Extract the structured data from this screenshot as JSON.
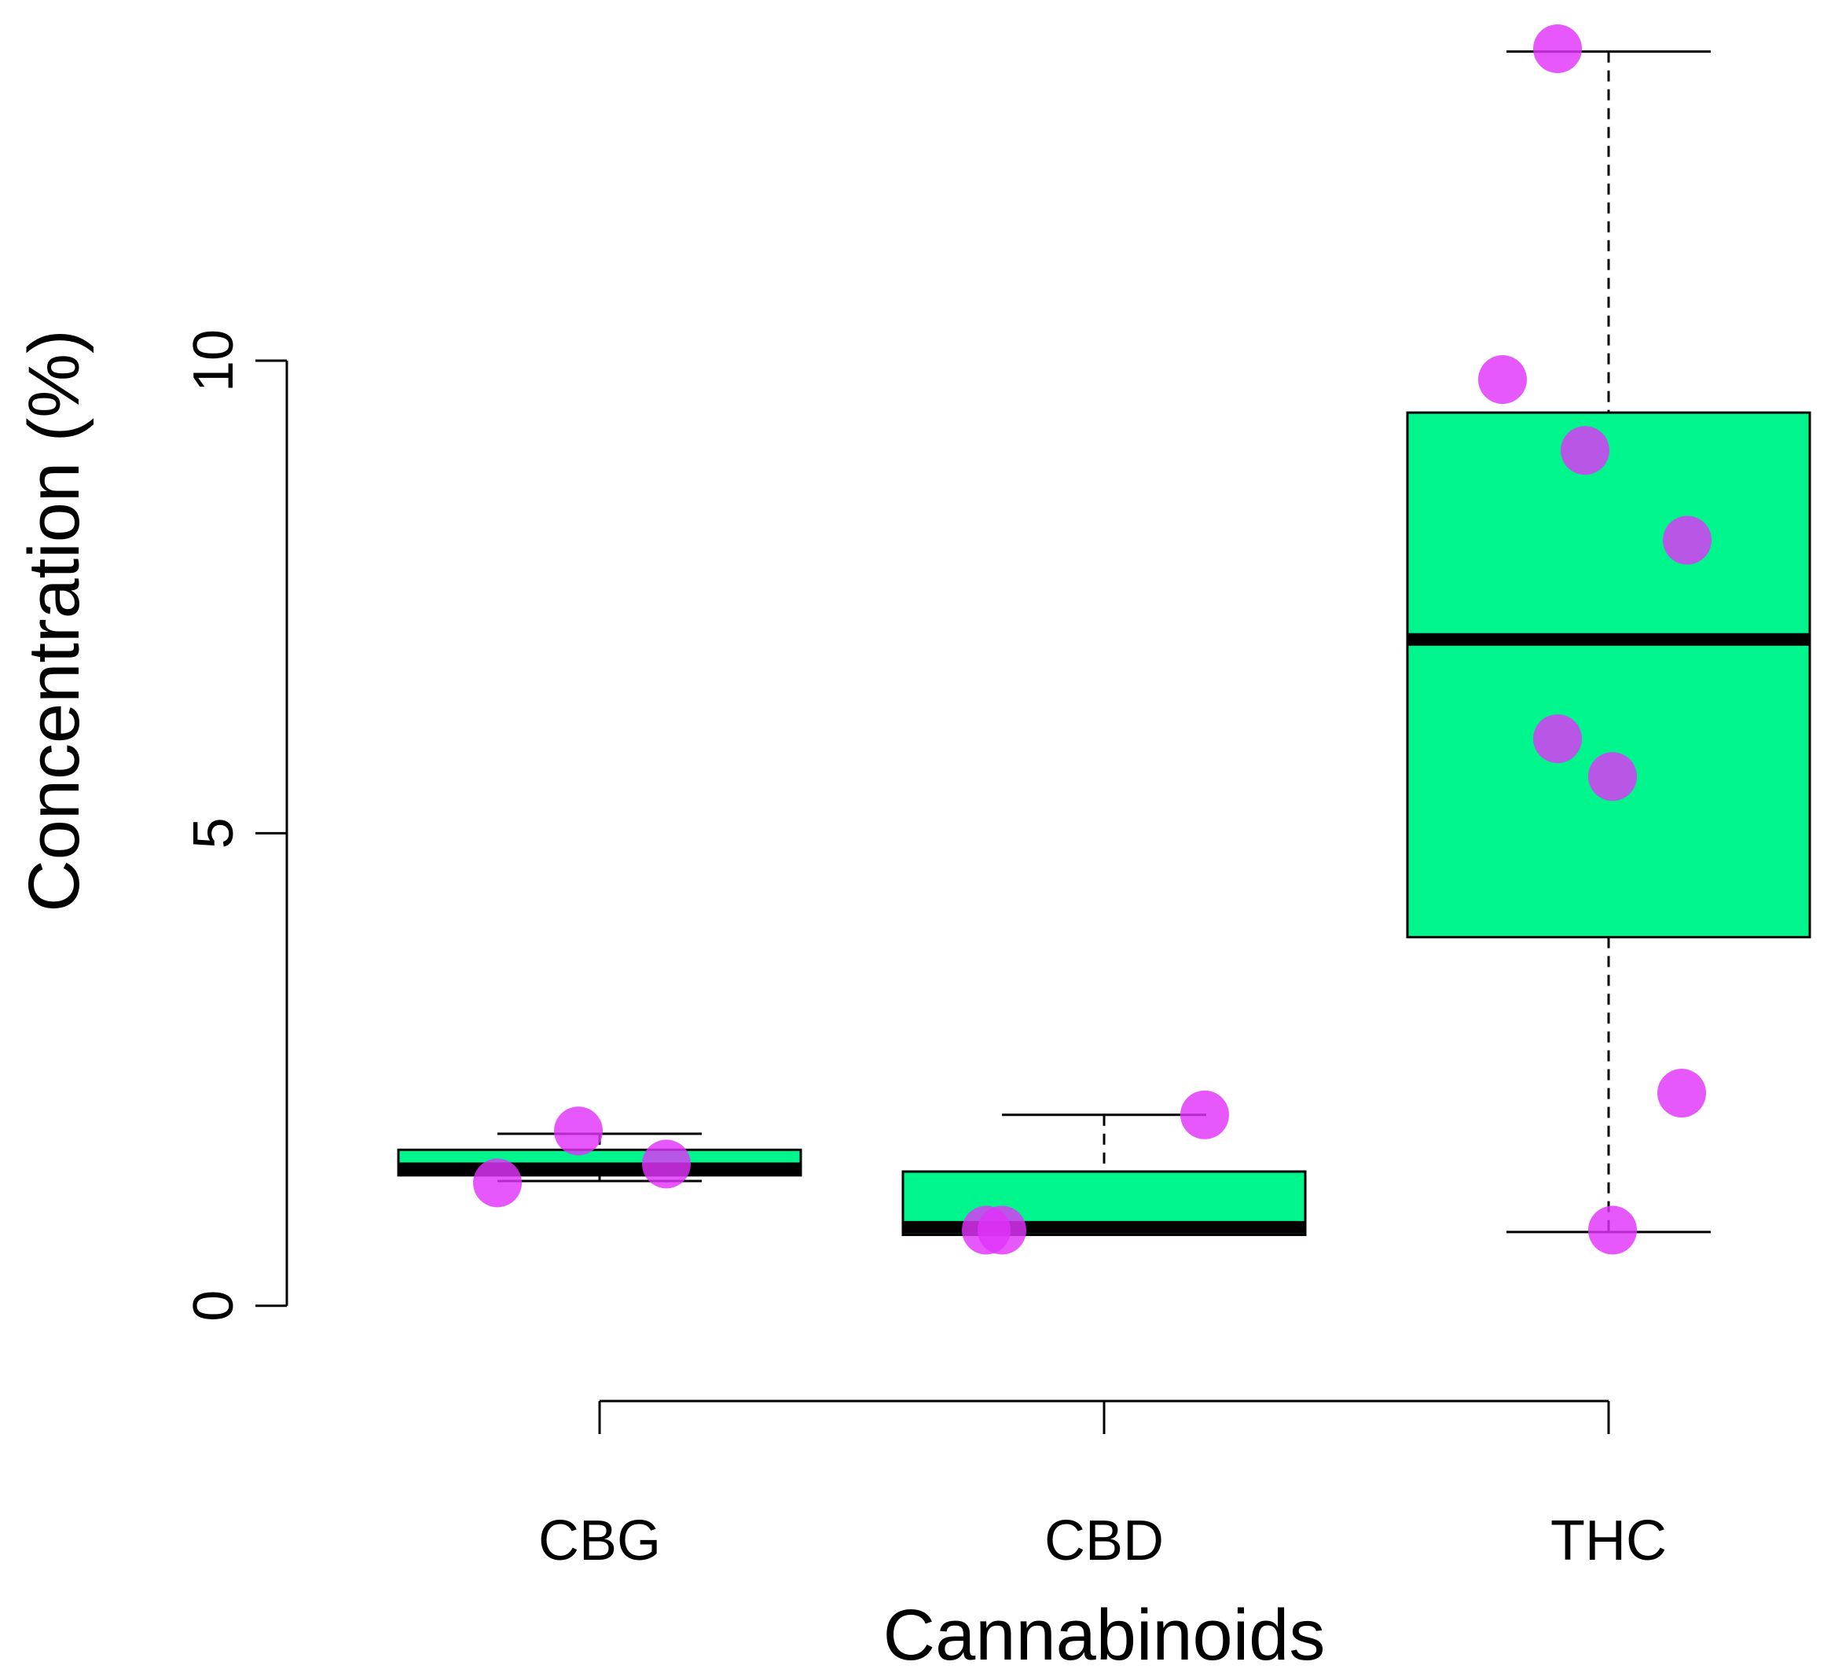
{
  "chart_data": {
    "type": "boxplot",
    "xlabel": "Cannabinoids",
    "ylabel": "Concentration (%)",
    "ylim": [
      -0.9,
      13.4
    ],
    "yticks": [
      0,
      5,
      10
    ],
    "categories": [
      "CBG",
      "CBD",
      "THC"
    ],
    "box_stats": [
      {
        "category": "CBG",
        "lower_whisker": 1.32,
        "q1": 1.38,
        "median": 1.45,
        "q3": 1.65,
        "upper_whisker": 1.82
      },
      {
        "category": "CBD",
        "lower_whisker": 0.75,
        "q1": 0.75,
        "median": 0.83,
        "q3": 1.42,
        "upper_whisker": 2.02
      },
      {
        "category": "THC",
        "lower_whisker": 0.78,
        "q1": 3.9,
        "median": 7.05,
        "q3": 9.45,
        "upper_whisker": 13.27
      }
    ],
    "points": [
      {
        "category": "CBG",
        "values": [
          1.85,
          1.3,
          1.5
        ]
      },
      {
        "category": "CBD",
        "values": [
          0.8,
          0.8,
          2.02
        ]
      },
      {
        "category": "THC",
        "values": [
          13.3,
          9.8,
          9.05,
          8.1,
          6.0,
          5.6,
          2.25,
          0.8
        ]
      }
    ],
    "grid": false,
    "legend": "none",
    "colors": {
      "box_fill": "#00F58C",
      "point_fill": "#E133FA",
      "line": "#000000"
    }
  }
}
